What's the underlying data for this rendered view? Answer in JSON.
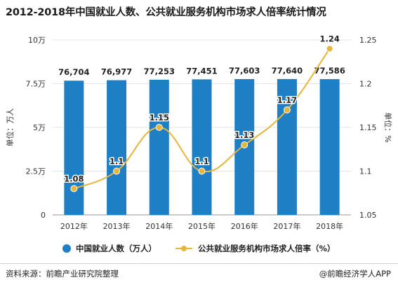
{
  "title": "2012-2018年中国就业人数、公共就业服务机构市场求人倍率统计情况",
  "footer": {
    "source": "资料来源：前瞻产业研究院整理",
    "brand": "@前瞻经济学人APP"
  },
  "colors": {
    "bar": "#1f7fc5",
    "line": "#e6b53a",
    "grid": "#e3e3e3"
  },
  "chart_data": {
    "type": "bar+line",
    "categories": [
      "2012年",
      "2013年",
      "2014年",
      "2015年",
      "2016年",
      "2017年",
      "2018年"
    ],
    "series": [
      {
        "name": "中国就业人数（万人）",
        "type": "bar",
        "axis": "left",
        "values": [
          76704,
          76977,
          77253,
          77451,
          77603,
          77640,
          77586
        ],
        "labels": [
          "76,704",
          "76,977",
          "77,253",
          "77,451",
          "77,603",
          "77,640",
          "77,586"
        ]
      },
      {
        "name": "公共就业服务机构市场求人倍率（%）",
        "type": "line",
        "axis": "right",
        "values": [
          1.08,
          1.1,
          1.15,
          1.1,
          1.13,
          1.17,
          1.24
        ],
        "labels": [
          "1.08",
          "1.1",
          "1.15",
          "1.1",
          "1.13",
          "1.17",
          "1.24"
        ]
      }
    ],
    "left_axis": {
      "label": "单位：万人",
      "ylim": [
        0,
        100000
      ],
      "ticks": [
        0,
        25000,
        50000,
        75000,
        100000
      ],
      "tick_labels": [
        "0",
        "2.5万",
        "5万",
        "7.5万",
        "10万"
      ]
    },
    "right_axis": {
      "label": "单位：%",
      "ylim": [
        1.05,
        1.25
      ],
      "ticks": [
        1.05,
        1.1,
        1.15,
        1.2,
        1.25
      ],
      "tick_labels": [
        "1.05",
        "1.1",
        "1.15",
        "1.2",
        "1.25"
      ]
    },
    "grid": true,
    "legend_position": "bottom"
  }
}
